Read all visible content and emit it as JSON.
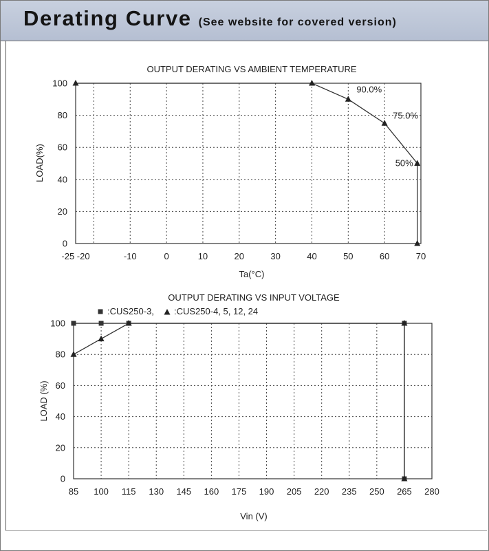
{
  "header": {
    "title": "Derating Curve",
    "subtitle": "(See website for covered version)"
  },
  "chart_data": [
    {
      "type": "line",
      "title": "OUTPUT DERATING VS AMBIENT TEMPERATURE",
      "xlabel": "Ta(°C)",
      "ylabel": "LOAD(%)",
      "xlim": [
        -25,
        70
      ],
      "ylim": [
        0,
        100
      ],
      "x_ticks": [
        -20,
        -10,
        0,
        10,
        20,
        30,
        40,
        50,
        60,
        70
      ],
      "x_tick_labels": [
        "-25 -20",
        "-10",
        "0",
        "10",
        "20",
        "30",
        "40",
        "50",
        "60",
        "70"
      ],
      "y_ticks": [
        0,
        20,
        40,
        60,
        80,
        100
      ],
      "grid": true,
      "series": [
        {
          "marker": "triangle",
          "x": [
            -25,
            40,
            50,
            60,
            69,
            69
          ],
          "y": [
            100,
            100,
            90,
            75,
            50,
            0
          ]
        }
      ],
      "annotations": [
        {
          "text": "90.0%",
          "x": 50,
          "y": 90
        },
        {
          "text": "75.0%",
          "x": 60,
          "y": 75
        },
        {
          "text": "50%",
          "x": 69,
          "y": 50
        }
      ]
    },
    {
      "type": "line",
      "title": "OUTPUT DERATING VS INPUT VOLTAGE",
      "xlabel": "Vin (V)",
      "ylabel": "LOAD (%)",
      "xlim": [
        85,
        280
      ],
      "ylim": [
        0,
        100
      ],
      "x_ticks": [
        85,
        100,
        115,
        130,
        145,
        160,
        175,
        190,
        205,
        220,
        235,
        250,
        265,
        280
      ],
      "y_ticks": [
        0,
        20,
        40,
        60,
        80,
        100
      ],
      "grid": true,
      "legend_position": "top-left",
      "series": [
        {
          "name": ":CUS250-3,",
          "marker": "square",
          "x": [
            85,
            100,
            115,
            265,
            265
          ],
          "y": [
            100,
            100,
            100,
            100,
            0
          ]
        },
        {
          "name": ":CUS250-4, 5, 12, 24",
          "marker": "triangle",
          "x": [
            85,
            100,
            115,
            265,
            265
          ],
          "y": [
            80,
            90,
            100,
            100,
            0
          ]
        }
      ]
    }
  ]
}
